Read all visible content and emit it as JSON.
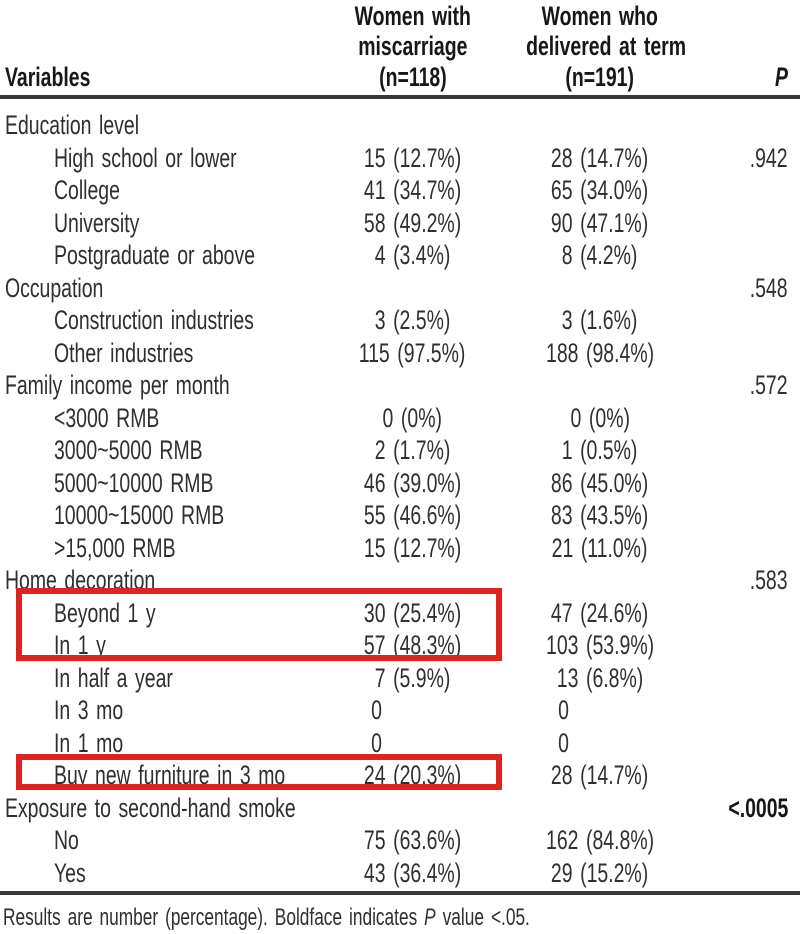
{
  "page": {
    "background_color": "#ffffff",
    "text_color": "#2f2f2f",
    "rule_color": "#383838",
    "highlight_color": "#de2420"
  },
  "header": {
    "variables_label": "Variables",
    "col1_lines": [
      "Women with",
      "miscarriage",
      "(n=118)"
    ],
    "col2_lines": [
      "Women who",
      "delivered at term",
      "(n=191)"
    ],
    "p_label": "P"
  },
  "table": {
    "rows": [
      {
        "label": "Education level",
        "indent": false,
        "c1": "",
        "c2": "",
        "p": ""
      },
      {
        "label": "High school or lower",
        "indent": true,
        "c1": "15 (12.7%)",
        "c2": "28 (14.7%)",
        "p": ".942"
      },
      {
        "label": "College",
        "indent": true,
        "c1": "41 (34.7%)",
        "c2": "65 (34.0%)",
        "p": ""
      },
      {
        "label": "University",
        "indent": true,
        "c1": "58 (49.2%)",
        "c2": "90 (47.1%)",
        "p": ""
      },
      {
        "label": "Postgraduate or above",
        "indent": true,
        "c1": "4 (3.4%)",
        "c2": "8 (4.2%)",
        "p": ""
      },
      {
        "label": "Occupation",
        "indent": false,
        "c1": "",
        "c2": "",
        "p": ".548"
      },
      {
        "label": "Construction industries",
        "indent": true,
        "c1": "3 (2.5%)",
        "c2": "3 (1.6%)",
        "p": ""
      },
      {
        "label": "Other industries",
        "indent": true,
        "c1": "115 (97.5%)",
        "c2": "188 (98.4%)",
        "p": ""
      },
      {
        "label": "Family income per month",
        "indent": false,
        "c1": "",
        "c2": "",
        "p": ".572"
      },
      {
        "label": "<3000 RMB",
        "indent": true,
        "c1": "0 (0%)",
        "c2": "0 (0%)",
        "p": ""
      },
      {
        "label": "3000~5000 RMB",
        "indent": true,
        "c1": "2 (1.7%)",
        "c2": "1 (0.5%)",
        "p": ""
      },
      {
        "label": "5000~10000 RMB",
        "indent": true,
        "c1": "46 (39.0%)",
        "c2": "86 (45.0%)",
        "p": ""
      },
      {
        "label": "10000~15000 RMB",
        "indent": true,
        "c1": "55 (46.6%)",
        "c2": "83 (43.5%)",
        "p": ""
      },
      {
        "label": ">15,000 RMB",
        "indent": true,
        "c1": "15 (12.7%)",
        "c2": "21 (11.0%)",
        "p": ""
      },
      {
        "label": "Home decoration",
        "indent": false,
        "c1": "",
        "c2": "",
        "p": ".583"
      },
      {
        "label": "Beyond 1 y",
        "indent": true,
        "c1": "30 (25.4%)",
        "c2": "47 (24.6%)",
        "p": ""
      },
      {
        "label": "In 1 y",
        "indent": true,
        "c1": "57 (48.3%)",
        "c2": "103 (53.9%)",
        "p": ""
      },
      {
        "label": "In half a year",
        "indent": true,
        "c1": "7 (5.9%)",
        "c2": "13 (6.8%)",
        "p": ""
      },
      {
        "label": "In 3 mo",
        "indent": true,
        "c1": "0",
        "c2": "0",
        "p": ""
      },
      {
        "label": "In 1 mo",
        "indent": true,
        "c1": "0",
        "c2": "0",
        "p": ""
      },
      {
        "label": "Buy new furniture in 3 mo",
        "indent": true,
        "c1": "24 (20.3%)",
        "c2": "28 (14.7%)",
        "p": ""
      },
      {
        "label": "Exposure to second-hand smoke",
        "indent": false,
        "c1": "",
        "c2": "",
        "p": "<.0005",
        "p_bold": true
      },
      {
        "label": "No",
        "indent": true,
        "c1": "75 (63.6%)",
        "c2": "162 (84.8%)",
        "p": ""
      },
      {
        "label": "Yes",
        "indent": true,
        "c1": "43 (36.4%)",
        "c2": "29 (15.2%)",
        "p": ""
      }
    ]
  },
  "annotations": {
    "boxes": [
      {
        "label": "highlight-home-decoration-beyond-1y-in-1y"
      },
      {
        "label": "highlight-buy-new-furniture-in-3-mo"
      }
    ]
  },
  "footnote": {
    "prefix": "Results are number (percentage). Boldface indicates ",
    "p": "P",
    "suffix": " value <.05."
  }
}
